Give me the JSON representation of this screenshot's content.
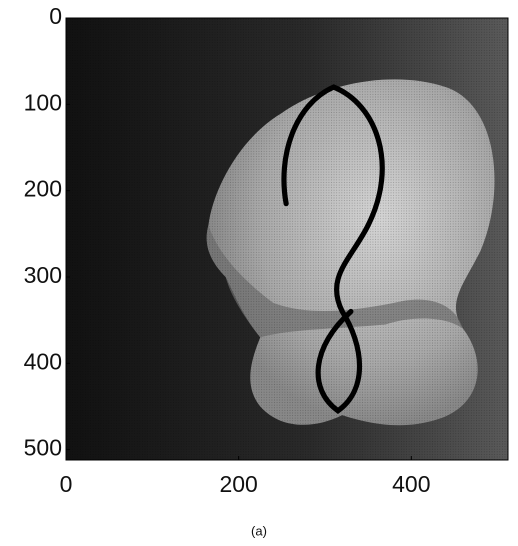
{
  "chart_data": {
    "type": "image",
    "caption": "(a)",
    "xlim": [
      0,
      512
    ],
    "ylim": [
      0,
      512
    ],
    "y_inverted": true,
    "xticks": [
      0,
      200,
      400
    ],
    "yticks": [
      0,
      100,
      200,
      300,
      400,
      500
    ]
  }
}
